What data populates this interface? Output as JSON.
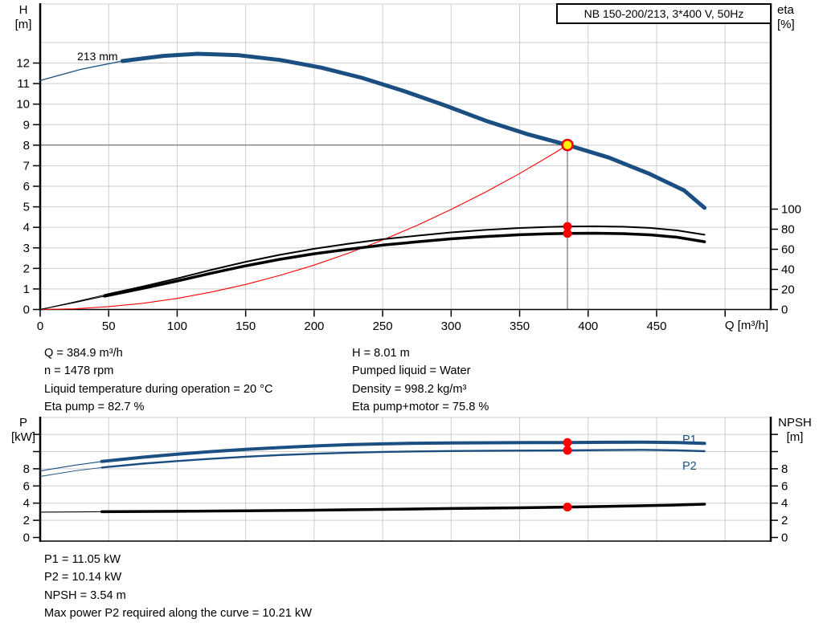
{
  "title_box": "NB 150-200/213, 3*400 V, 50Hz",
  "colors": {
    "curve_blue": "#1b4f82",
    "red": "#ff0000",
    "yellow": "#fff200",
    "black": "#000000",
    "grid": "#cdcdcd",
    "crosshair": "#7d7d7d"
  },
  "info_mid_left": [
    "Q = 384.9 m³/h",
    "n = 1478 rpm",
    "Liquid temperature during operation = 20 °C",
    "Eta pump = 82.7 %"
  ],
  "info_mid_right": [
    "H = 8.01 m",
    "Pumped liquid = Water",
    "Density = 998.2 kg/m³",
    "Eta pump+motor = 75.8 %"
  ],
  "info_bottom": [
    "P1 = 11.05 kW",
    "P2 = 10.14 kW",
    "NPSH = 3.54 m",
    "Max power P2 required along the curve = 10.21 kW"
  ],
  "duty_point": {
    "q": 384.9,
    "h": 8.01,
    "eta_pump": 82.7,
    "eta_pump_motor": 75.8,
    "p1": 11.05,
    "p2": 10.14,
    "npsh": 3.54
  },
  "chart_data": [
    {
      "type": "line",
      "title": "NB 150-200/213, 3*400 V, 50Hz",
      "xlabel": "Q [m³/h]",
      "ylabel_left": [
        "H",
        "[m]"
      ],
      "ylabel_right": [
        "eta",
        "[%]"
      ],
      "xlim": [
        0,
        533
      ],
      "x_ticks": [
        0,
        50,
        100,
        150,
        200,
        250,
        300,
        350,
        400,
        450
      ],
      "x_ticks_unlabeled": [
        500
      ],
      "ylim_left": [
        0,
        14.9
      ],
      "y_ticks_left": [
        0,
        1,
        2,
        3,
        4,
        5,
        6,
        7,
        8,
        9,
        10,
        11,
        12
      ],
      "y_grid": [
        1,
        2,
        3,
        4,
        5,
        6,
        7,
        8,
        9,
        10,
        11,
        12,
        13
      ],
      "y_ticks_right": [
        0,
        20,
        40,
        60,
        80,
        100
      ],
      "grid": true,
      "legend_position": "none",
      "series": [
        {
          "id": "qh-curve",
          "label": "213 mm",
          "axis": "left",
          "color": "curve_blue",
          "thick_from": 55,
          "points": [
            [
              0,
              11.15
            ],
            [
              30,
              11.7
            ],
            [
              60,
              12.1
            ],
            [
              90,
              12.35
            ],
            [
              115,
              12.45
            ],
            [
              145,
              12.38
            ],
            [
              175,
              12.15
            ],
            [
              205,
              11.78
            ],
            [
              235,
              11.28
            ],
            [
              265,
              10.65
            ],
            [
              295,
              9.95
            ],
            [
              325,
              9.2
            ],
            [
              355,
              8.55
            ],
            [
              384.9,
              8.01
            ],
            [
              415,
              7.4
            ],
            [
              445,
              6.6
            ],
            [
              470,
              5.8
            ],
            [
              485,
              4.95
            ]
          ]
        },
        {
          "id": "duty-parabola",
          "label": "",
          "axis": "left",
          "color": "red",
          "thick_from": null,
          "points": [
            [
              0,
              0
            ],
            [
              25,
              0.03
            ],
            [
              50,
              0.14
            ],
            [
              75,
              0.3
            ],
            [
              100,
              0.54
            ],
            [
              125,
              0.85
            ],
            [
              150,
              1.22
            ],
            [
              175,
              1.66
            ],
            [
              200,
              2.16
            ],
            [
              225,
              2.74
            ],
            [
              250,
              3.38
            ],
            [
              275,
              4.09
            ],
            [
              300,
              4.87
            ],
            [
              325,
              5.71
            ],
            [
              350,
              6.62
            ],
            [
              375,
              7.6
            ],
            [
              384.9,
              8.01
            ]
          ]
        },
        {
          "id": "eta-pump",
          "label": "",
          "axis": "right",
          "color": "black",
          "thick_from": 47,
          "points": [
            [
              0,
              0
            ],
            [
              25,
              7.5
            ],
            [
              47,
              14.5
            ],
            [
              75,
              23
            ],
            [
              100,
              31
            ],
            [
              125,
              39.5
            ],
            [
              150,
              47.5
            ],
            [
              175,
              54.5
            ],
            [
              200,
              60.5
            ],
            [
              225,
              65.5
            ],
            [
              250,
              70
            ],
            [
              275,
              73.5
            ],
            [
              300,
              76.8
            ],
            [
              325,
              79.3
            ],
            [
              350,
              81.2
            ],
            [
              370,
              82.2
            ],
            [
              384.9,
              82.7
            ],
            [
              405,
              82.9
            ],
            [
              425,
              82.5
            ],
            [
              445,
              81.3
            ],
            [
              465,
              78.8
            ],
            [
              485,
              74.5
            ]
          ]
        },
        {
          "id": "eta-pump-motor",
          "label": "",
          "axis": "right",
          "color": "black",
          "thick_from": 47,
          "points": [
            [
              0,
              0
            ],
            [
              25,
              6.9
            ],
            [
              47,
              13.3
            ],
            [
              75,
              21.1
            ],
            [
              100,
              28.4
            ],
            [
              125,
              36.2
            ],
            [
              150,
              43.5
            ],
            [
              175,
              50
            ],
            [
              200,
              55.5
            ],
            [
              225,
              60
            ],
            [
              250,
              64.2
            ],
            [
              275,
              67.4
            ],
            [
              300,
              70.4
            ],
            [
              325,
              72.7
            ],
            [
              350,
              74.5
            ],
            [
              370,
              75.4
            ],
            [
              384.9,
              75.8
            ],
            [
              405,
              76
            ],
            [
              425,
              75.6
            ],
            [
              445,
              74.4
            ],
            [
              465,
              72
            ],
            [
              485,
              67.5
            ]
          ]
        }
      ]
    },
    {
      "type": "line",
      "title": "",
      "xlabel": "",
      "ylabel_left": [
        "P",
        "[kW]"
      ],
      "ylabel_right": [
        "NPSH",
        "[m]"
      ],
      "xlim": [
        0,
        533
      ],
      "x_grid": [
        50,
        100,
        150,
        200,
        250,
        300,
        350,
        400,
        450,
        500
      ],
      "ylim": [
        -0.45,
        13.9
      ],
      "y_ticks": [
        0,
        2,
        4,
        6,
        8,
        10,
        12
      ],
      "y_tick_label_max": 8,
      "y_grid": [
        2,
        4,
        6,
        8,
        10,
        12
      ],
      "grid": true,
      "legend_position": "inline-right",
      "series": [
        {
          "id": "p1-curve",
          "label": "P1",
          "axis": "left",
          "color": "curve_blue",
          "thick_from": 45,
          "points": [
            [
              0,
              7.75
            ],
            [
              25,
              8.4
            ],
            [
              45,
              8.85
            ],
            [
              75,
              9.35
            ],
            [
              100,
              9.7
            ],
            [
              125,
              10.0
            ],
            [
              150,
              10.25
            ],
            [
              175,
              10.47
            ],
            [
              200,
              10.65
            ],
            [
              225,
              10.8
            ],
            [
              250,
              10.9
            ],
            [
              275,
              10.97
            ],
            [
              300,
              11.0
            ],
            [
              330,
              11.03
            ],
            [
              360,
              11.05
            ],
            [
              384.9,
              11.05
            ],
            [
              415,
              11.08
            ],
            [
              440,
              11.1
            ],
            [
              465,
              11.05
            ],
            [
              485,
              10.95
            ]
          ]
        },
        {
          "id": "p2-curve",
          "label": "P2",
          "axis": "left",
          "color": "curve_blue",
          "thick_from": 45,
          "points": [
            [
              0,
              7.1
            ],
            [
              25,
              7.75
            ],
            [
              45,
              8.15
            ],
            [
              75,
              8.6
            ],
            [
              100,
              8.9
            ],
            [
              125,
              9.17
            ],
            [
              150,
              9.4
            ],
            [
              175,
              9.6
            ],
            [
              200,
              9.75
            ],
            [
              225,
              9.87
            ],
            [
              250,
              9.96
            ],
            [
              275,
              10.02
            ],
            [
              300,
              10.07
            ],
            [
              330,
              10.1
            ],
            [
              360,
              10.12
            ],
            [
              384.9,
              10.14
            ],
            [
              415,
              10.18
            ],
            [
              440,
              10.21
            ],
            [
              465,
              10.15
            ],
            [
              485,
              10.05
            ]
          ]
        },
        {
          "id": "npsh-curve",
          "label": "",
          "axis": "left",
          "color": "black",
          "thick_from": 45,
          "points": [
            [
              0,
              2.95
            ],
            [
              45,
              3.0
            ],
            [
              100,
              3.05
            ],
            [
              150,
              3.1
            ],
            [
              200,
              3.18
            ],
            [
              250,
              3.27
            ],
            [
              300,
              3.37
            ],
            [
              350,
              3.46
            ],
            [
              384.9,
              3.54
            ],
            [
              430,
              3.66
            ],
            [
              460,
              3.76
            ],
            [
              485,
              3.88
            ]
          ]
        }
      ]
    }
  ]
}
